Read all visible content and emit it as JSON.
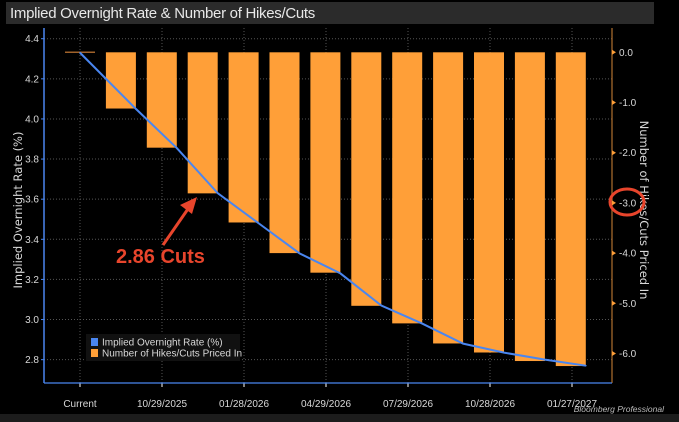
{
  "chart_data": {
    "type": "bar+line",
    "title": "Implied Overnight Rate & Number of Hikes/Cuts",
    "ylabel_left": "Implied Overnight Rate (%)",
    "ylabel_right": "Number of Hikes/Cuts Priced In",
    "ylim_left": [
      2.6,
      4.48
    ],
    "yticks_left": [
      "4.4",
      "4.2",
      "4.0",
      "3.8",
      "3.6",
      "3.4",
      "3.2",
      "3.0",
      "2.8"
    ],
    "ylim_right": [
      -6.7,
      0.7
    ],
    "yticks_right": [
      "0.0",
      "-1.0",
      "-2.0",
      "-3.0",
      "-4.0",
      "-5.0",
      "-6.0"
    ],
    "xtick_labels": [
      "Current",
      "10/29/2025",
      "01/28/2026",
      "04/29/2026",
      "07/29/2026",
      "10/28/2026",
      "01/27/2027"
    ],
    "grid": true,
    "legend_position": "bottom-left",
    "series": [
      {
        "name": "Implied Overnight Rate (%)",
        "type": "line",
        "color": "#4a86f0",
        "values": [
          4.33,
          4.05,
          3.855,
          3.63,
          3.48,
          3.33,
          3.23,
          3.07,
          2.98,
          2.88,
          2.835,
          2.8,
          2.77
        ]
      },
      {
        "name": "Number of Hikes/Cuts Priced In",
        "type": "bar",
        "color": "#ff9f38",
        "values": [
          0,
          -1.12,
          -1.9,
          -2.81,
          -3.39,
          -4.0,
          -4.39,
          -5.05,
          -5.4,
          -5.8,
          -5.98,
          -6.15,
          -6.25
        ]
      }
    ],
    "annotation": {
      "text": "2.86 Cuts",
      "color": "#e8452c",
      "highlighted_tick": "-3.0"
    }
  },
  "source": "Bloomberg Professional"
}
